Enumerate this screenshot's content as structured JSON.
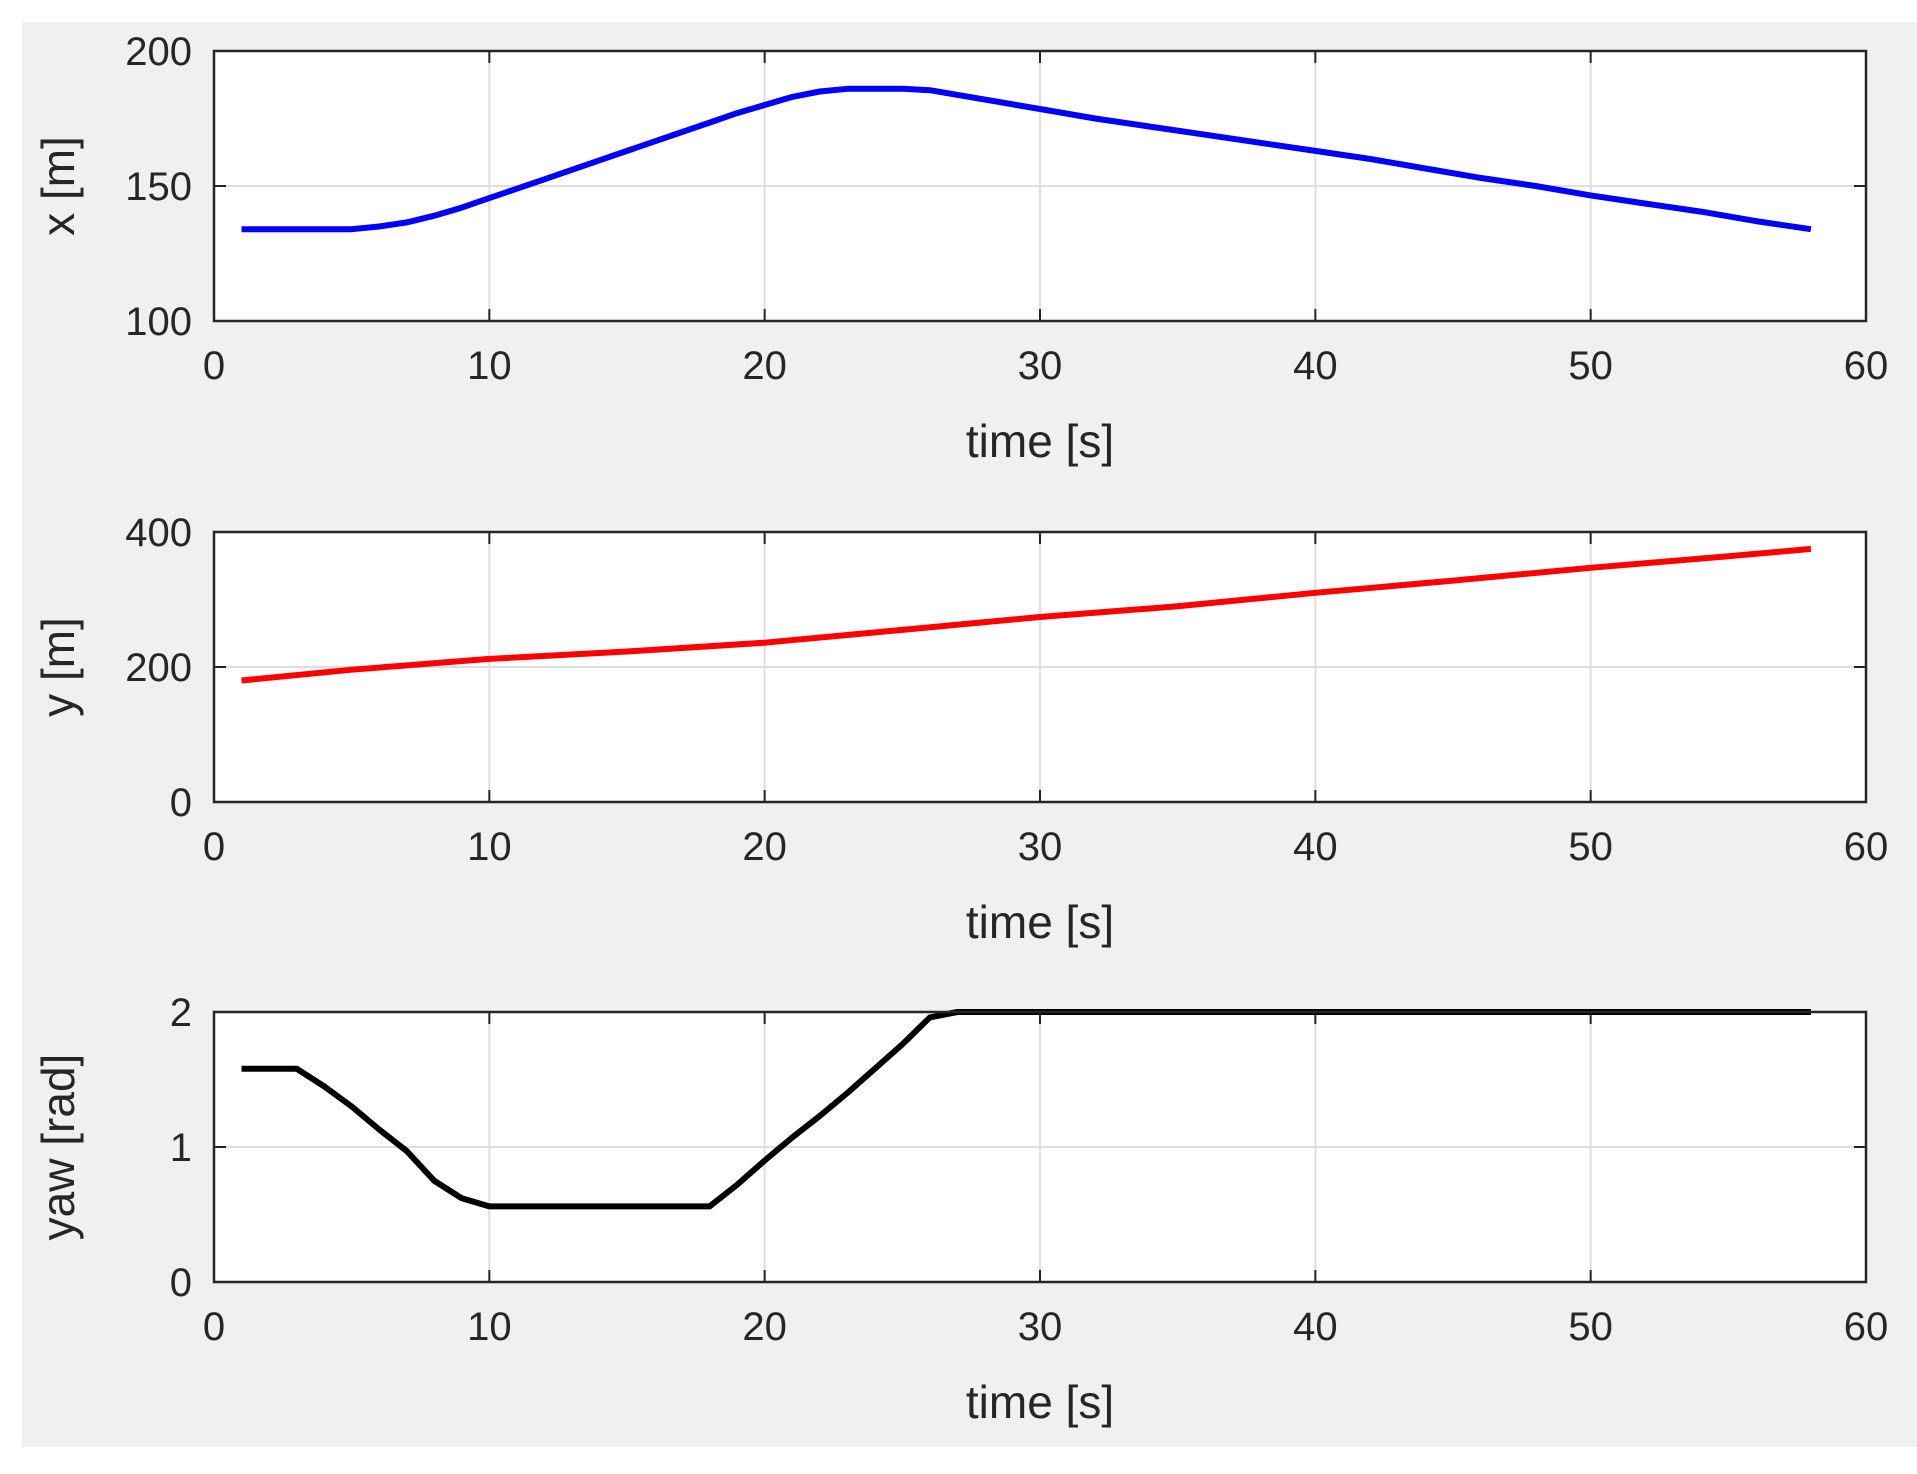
{
  "figure": {
    "background_color": "#f0f0f0",
    "axes_color": "#ffffff",
    "grid": true,
    "grid_color": "#dedede",
    "frame_color": "#262626"
  },
  "chart_data": [
    {
      "type": "line",
      "title": "",
      "xlabel": "time [s]",
      "ylabel": "x [m]",
      "xlim": [
        0,
        60
      ],
      "ylim": [
        100,
        200
      ],
      "xticks": [
        0,
        10,
        20,
        30,
        40,
        50,
        60
      ],
      "yticks": [
        100,
        150,
        200
      ],
      "series": [
        {
          "color": "#0000ff",
          "x": [
            1,
            2,
            3,
            4,
            5,
            6,
            7,
            8,
            9,
            10,
            11,
            12,
            13,
            14,
            15,
            16,
            17,
            18,
            19,
            20,
            21,
            22,
            23,
            24,
            25,
            26,
            28,
            30,
            32,
            34,
            36,
            38,
            40,
            42,
            44,
            46,
            48,
            50,
            52,
            54,
            56,
            58
          ],
          "y": [
            134,
            134,
            134,
            134,
            134,
            135,
            136.5,
            139,
            142,
            145.5,
            149,
            152.5,
            156,
            159.5,
            163,
            166.5,
            170,
            173.5,
            177,
            180,
            183,
            185,
            186,
            186,
            186,
            185.5,
            182,
            178.5,
            175,
            172,
            169,
            166,
            163,
            160,
            156.5,
            153,
            150,
            146.5,
            143.5,
            140.5,
            137,
            134
          ]
        }
      ]
    },
    {
      "type": "line",
      "title": "",
      "xlabel": "time [s]",
      "ylabel": "y [m]",
      "xlim": [
        0,
        60
      ],
      "ylim": [
        0,
        400
      ],
      "xticks": [
        0,
        10,
        20,
        30,
        40,
        50,
        60
      ],
      "yticks": [
        0,
        200,
        400
      ],
      "series": [
        {
          "color": "#ff0000",
          "x": [
            1,
            5,
            10,
            15,
            20,
            25,
            30,
            35,
            40,
            45,
            50,
            55,
            58
          ],
          "y": [
            180,
            196,
            212,
            223,
            236,
            255,
            274,
            290,
            310,
            328,
            347,
            364,
            375
          ]
        }
      ]
    },
    {
      "type": "line",
      "title": "",
      "xlabel": "time [s]",
      "ylabel": "yaw [rad]",
      "xlim": [
        0,
        60
      ],
      "ylim": [
        0,
        2
      ],
      "xticks": [
        0,
        10,
        20,
        30,
        40,
        50,
        60
      ],
      "yticks": [
        0,
        1,
        2
      ],
      "series": [
        {
          "color": "#000000",
          "x": [
            1,
            3,
            4,
            5,
            6,
            7,
            8,
            9,
            10,
            12,
            14,
            16,
            18,
            19,
            20,
            21,
            22,
            23,
            24,
            25,
            26,
            27,
            30,
            40,
            50,
            58
          ],
          "y": [
            1.58,
            1.58,
            1.45,
            1.3,
            1.13,
            0.97,
            0.75,
            0.62,
            0.56,
            0.56,
            0.56,
            0.56,
            0.56,
            0.72,
            0.9,
            1.07,
            1.23,
            1.4,
            1.58,
            1.76,
            1.96,
            2.0,
            2.0,
            2.0,
            2.0,
            2.0
          ]
        }
      ]
    }
  ]
}
